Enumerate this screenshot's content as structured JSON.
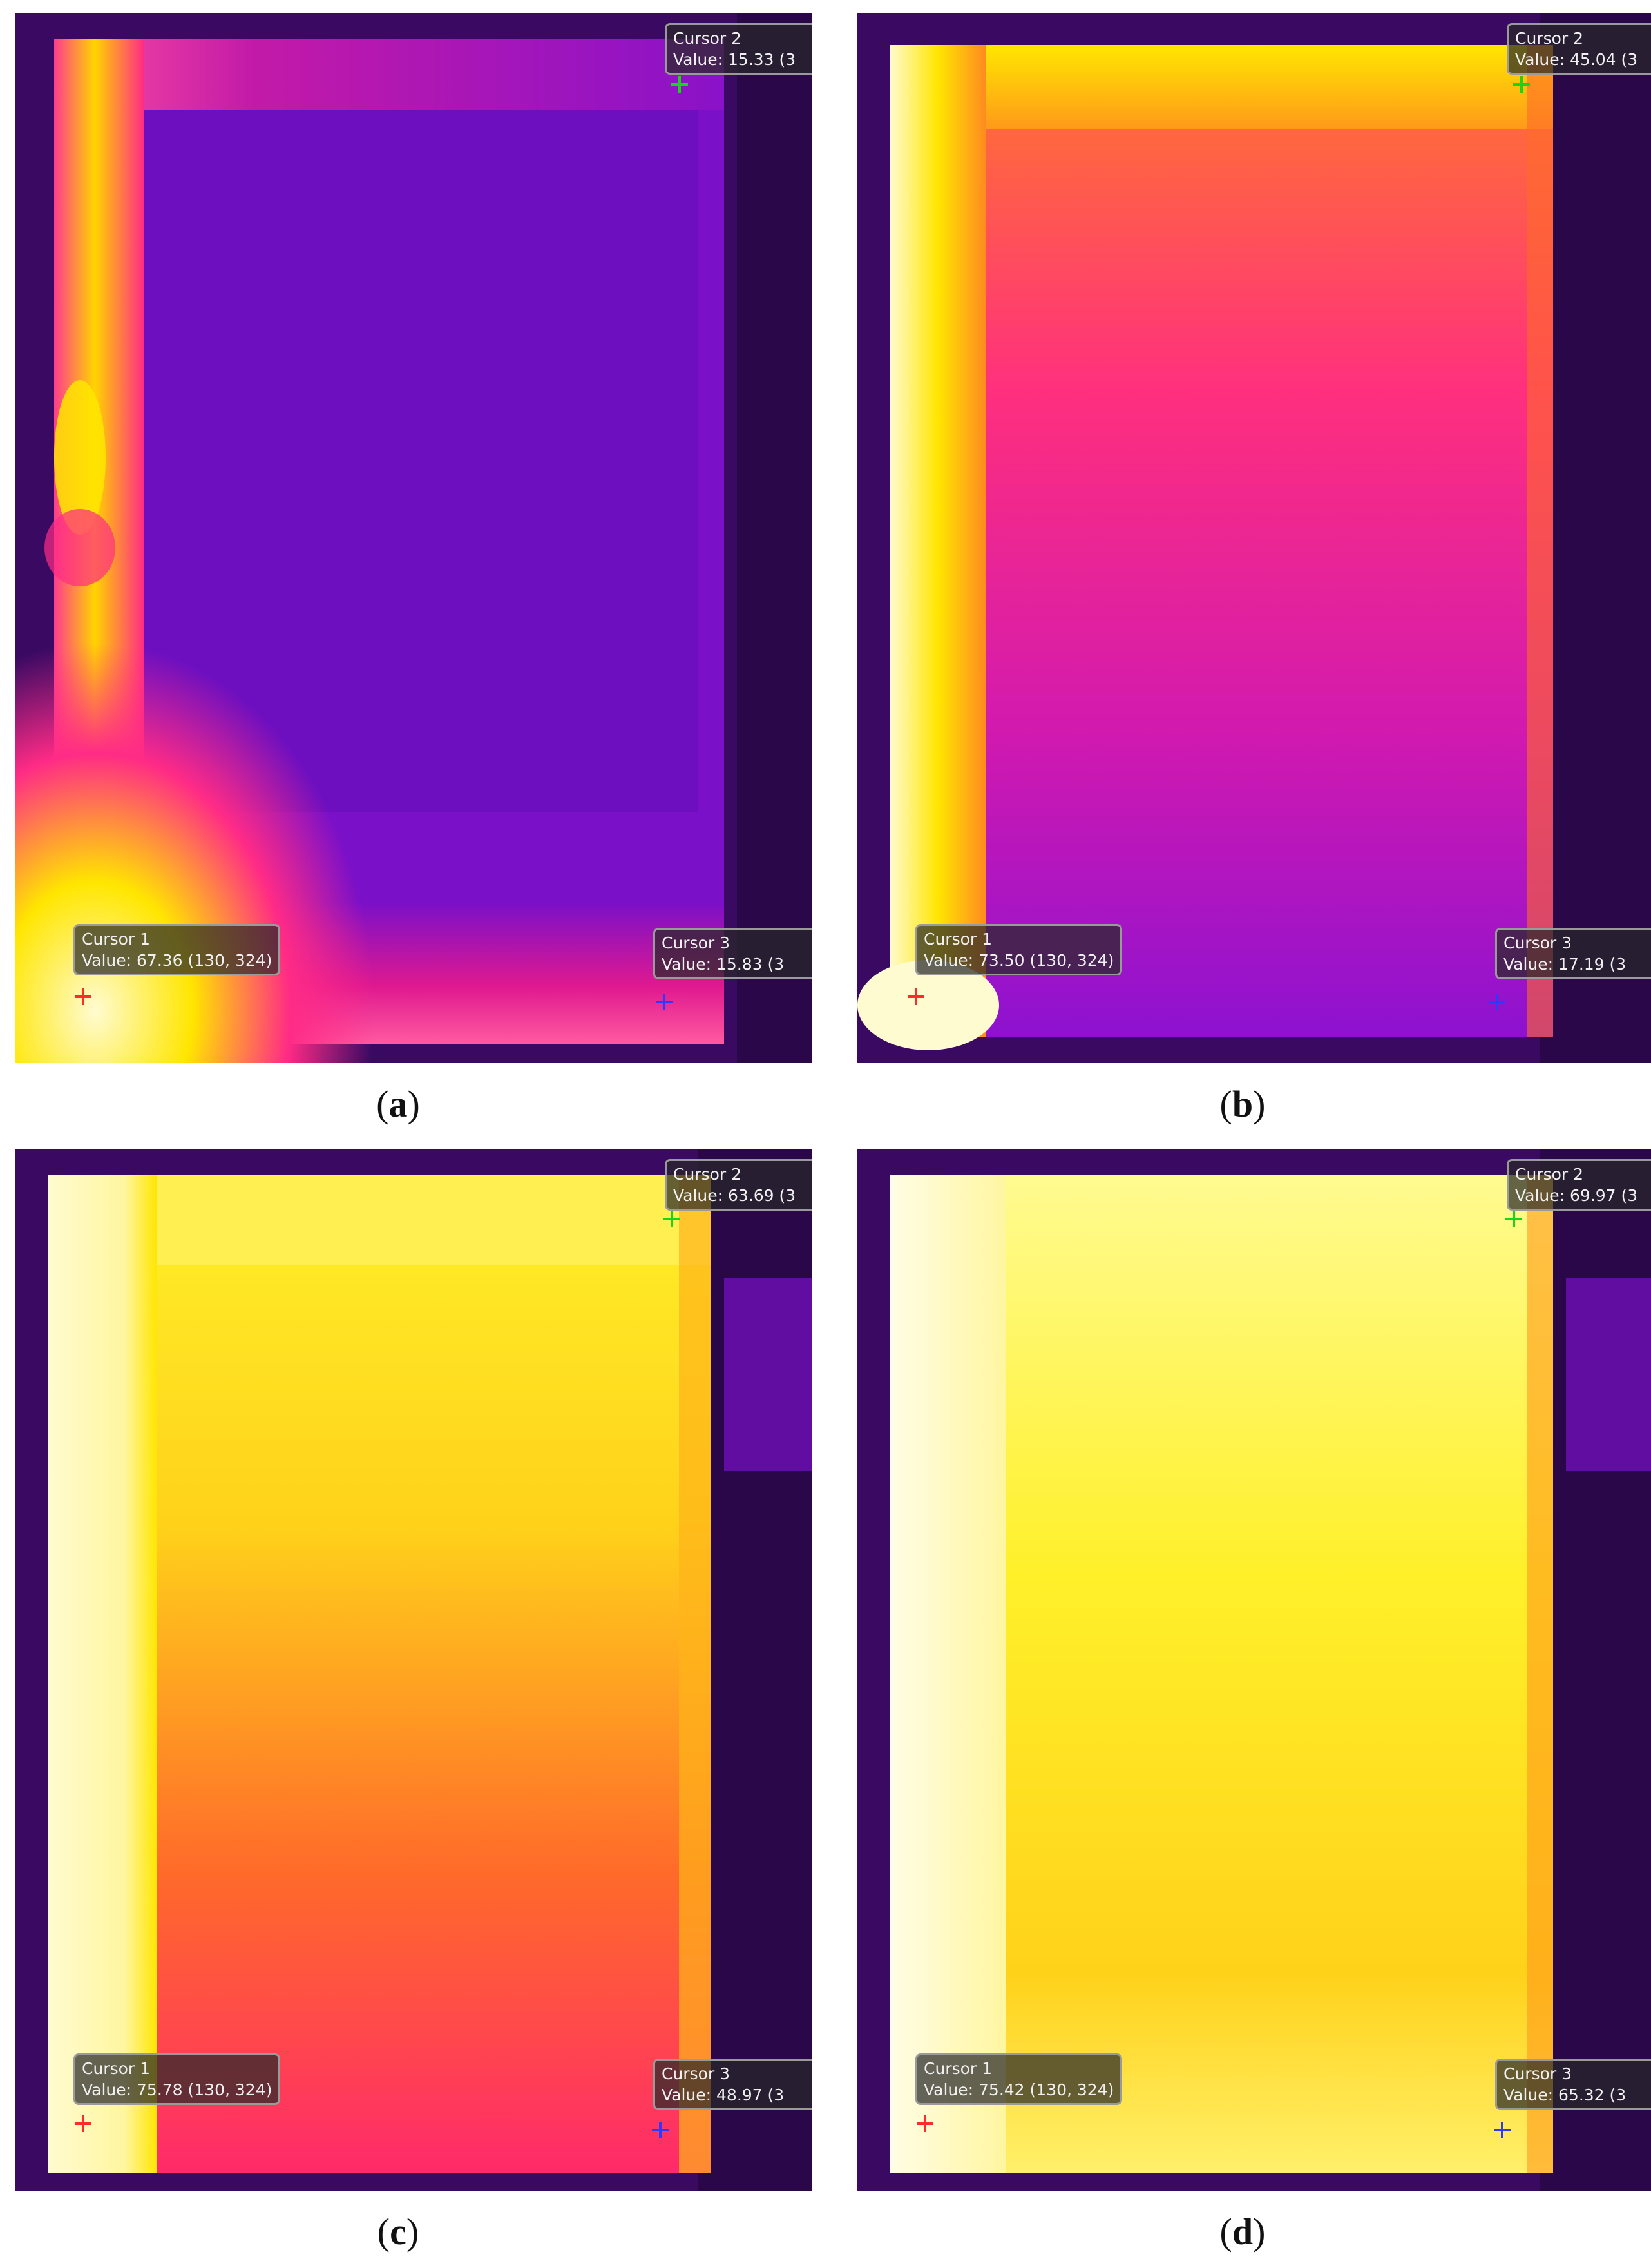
{
  "panels": [
    {
      "caption_letter": "a",
      "cursor1": {
        "label": "Cursor 1",
        "value": "Value: 67.36 (130, 324)"
      },
      "cursor2": {
        "label": "Cursor 2",
        "value": "Value: 15.33 (3"
      },
      "cursor3": {
        "label": "Cursor 3",
        "value": "Value: 15.83 (3"
      }
    },
    {
      "caption_letter": "b",
      "cursor1": {
        "label": "Cursor 1",
        "value": "Value: 73.50 (130, 324)"
      },
      "cursor2": {
        "label": "Cursor 2",
        "value": "Value: 45.04 (3"
      },
      "cursor3": {
        "label": "Cursor 3",
        "value": "Value: 17.19 (3"
      }
    },
    {
      "caption_letter": "c",
      "cursor1": {
        "label": "Cursor 1",
        "value": "Value: 75.78 (130, 324)"
      },
      "cursor2": {
        "label": "Cursor 2",
        "value": "Value: 63.69 (3"
      },
      "cursor3": {
        "label": "Cursor 3",
        "value": "Value: 48.97 (3"
      }
    },
    {
      "caption_letter": "d",
      "cursor1": {
        "label": "Cursor 1",
        "value": "Value: 75.42 (130, 324)"
      },
      "cursor2": {
        "label": "Cursor 2",
        "value": "Value: 69.97 (3"
      },
      "cursor3": {
        "label": "Cursor 3",
        "value": "Value: 65.32 (3"
      }
    }
  ],
  "colors": {
    "background_cold": "#3a0a63",
    "panel_cold": "#7a10c8",
    "warm": "#ff1f7a",
    "hot": "#ffe600",
    "hottest": "#fffbd0"
  }
}
